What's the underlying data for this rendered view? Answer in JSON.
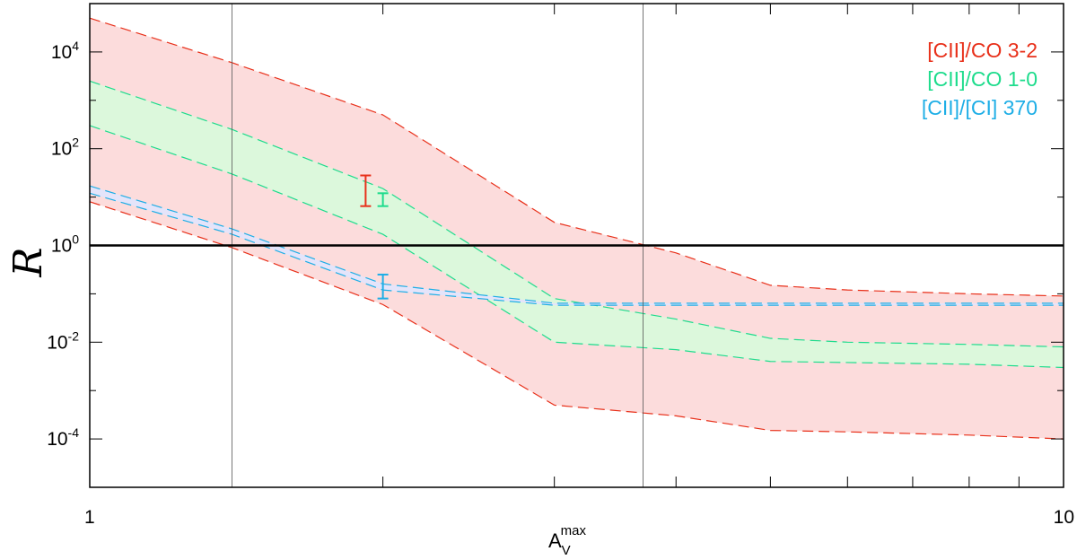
{
  "chart_data": {
    "type": "area",
    "xscale": "log",
    "yscale": "log",
    "xlim": [
      1,
      10
    ],
    "ylim": [
      1e-05,
      100000
    ],
    "x_tick_labels": [
      {
        "value": 1,
        "label": "1"
      },
      {
        "value": 10,
        "label": "10"
      }
    ],
    "x_minor_ticks": [
      2,
      3,
      4,
      5,
      6,
      7,
      8,
      9
    ],
    "y_tick_labels": [
      {
        "value": 0.0001,
        "base": "10",
        "exp": "-4"
      },
      {
        "value": 0.01,
        "base": "10",
        "exp": "-2"
      },
      {
        "value": 1,
        "base": "10",
        "exp": "0"
      },
      {
        "value": 100,
        "base": "10",
        "exp": "2"
      },
      {
        "value": 10000,
        "base": "10",
        "exp": "4"
      }
    ],
    "y_minor_ticks": [
      1e-05,
      0.001,
      0.1,
      10,
      1000
    ],
    "xlabel": {
      "base": "A",
      "sub": "V",
      "sup": "max"
    },
    "ylabel": "R",
    "reference_hline": {
      "y": 1
    },
    "reference_vlines": [
      1.4,
      3.7
    ],
    "legend_position": "top-right",
    "bands": [
      {
        "name": "[CII]/CO 3-2",
        "color": "#e8301a",
        "fill": "#fcdcdc",
        "x": [
          1,
          1.4,
          2,
          3,
          4,
          5,
          6,
          8,
          10
        ],
        "upper": [
          50000,
          6000,
          500,
          3,
          0.7,
          0.15,
          0.12,
          0.1,
          0.09
        ],
        "lower": [
          8,
          0.9,
          0.06,
          0.0005,
          0.0003,
          0.00015,
          0.00014,
          0.00012,
          0.0001
        ]
      },
      {
        "name": "[CII]/CO 1-0",
        "color": "#1ddc8c",
        "fill": "#dcf8dc",
        "x": [
          1,
          1.4,
          2,
          3,
          4,
          5,
          6,
          8,
          10
        ],
        "upper": [
          2500,
          250,
          15,
          0.08,
          0.03,
          0.012,
          0.01,
          0.009,
          0.008
        ],
        "lower": [
          300,
          30,
          1.7,
          0.01,
          0.007,
          0.004,
          0.0038,
          0.0035,
          0.003
        ]
      },
      {
        "name": "[CII]/[CI] 370",
        "color": "#1eaee6",
        "fill": "#e4e4fa",
        "x": [
          1,
          1.4,
          2,
          3,
          4,
          5,
          6,
          8,
          10
        ],
        "upper": [
          17,
          2.2,
          0.16,
          0.064,
          0.064,
          0.064,
          0.064,
          0.064,
          0.064
        ],
        "lower": [
          12,
          1.7,
          0.12,
          0.058,
          0.058,
          0.058,
          0.058,
          0.058,
          0.058
        ]
      }
    ],
    "error_bars": [
      {
        "series": "[CII]/CO 3-2",
        "x": 1.92,
        "low": 6.5,
        "high": 28,
        "color": "#e8301a"
      },
      {
        "series": "[CII]/CO 1-0",
        "x": 2.0,
        "low": 6.5,
        "high": 12,
        "color": "#1ddc8c"
      },
      {
        "series": "[CII]/[CI] 370",
        "x": 2.0,
        "low": 0.08,
        "high": 0.25,
        "color": "#1eaee6"
      }
    ]
  }
}
